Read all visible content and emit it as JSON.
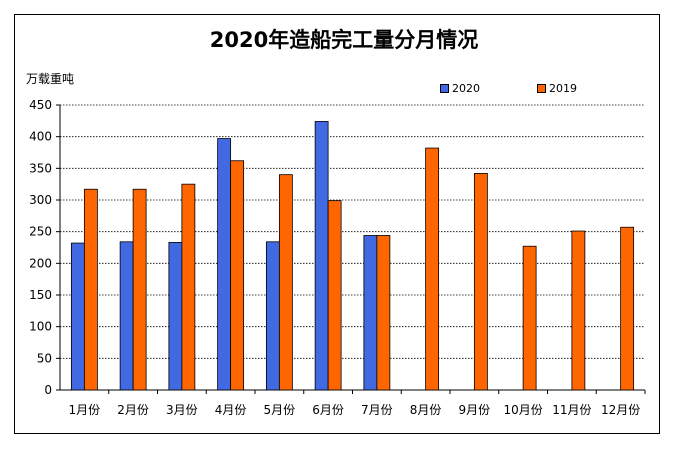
{
  "chart_data": {
    "type": "bar",
    "title": "2020年造船完工量分月情况",
    "ylabel": "万载重吨",
    "xlabel": "",
    "ylim": [
      0,
      450
    ],
    "yticks": [
      0,
      50,
      100,
      150,
      200,
      250,
      300,
      350,
      400,
      450
    ],
    "grid": true,
    "legend_position": "top-right",
    "categories": [
      "1月份",
      "2月份",
      "3月份",
      "4月份",
      "5月份",
      "6月份",
      "7月份",
      "8月份",
      "9月份",
      "10月份",
      "11月份",
      "12月份"
    ],
    "series": [
      {
        "name": "2020",
        "color": "#4169E1",
        "values": [
          232,
          234,
          233,
          397,
          234,
          424,
          244,
          null,
          null,
          null,
          null,
          null
        ]
      },
      {
        "name": "2019",
        "color": "#FF6600",
        "values": [
          317,
          317,
          325,
          362,
          340,
          299,
          244,
          382,
          342,
          227,
          251,
          257
        ]
      }
    ]
  }
}
